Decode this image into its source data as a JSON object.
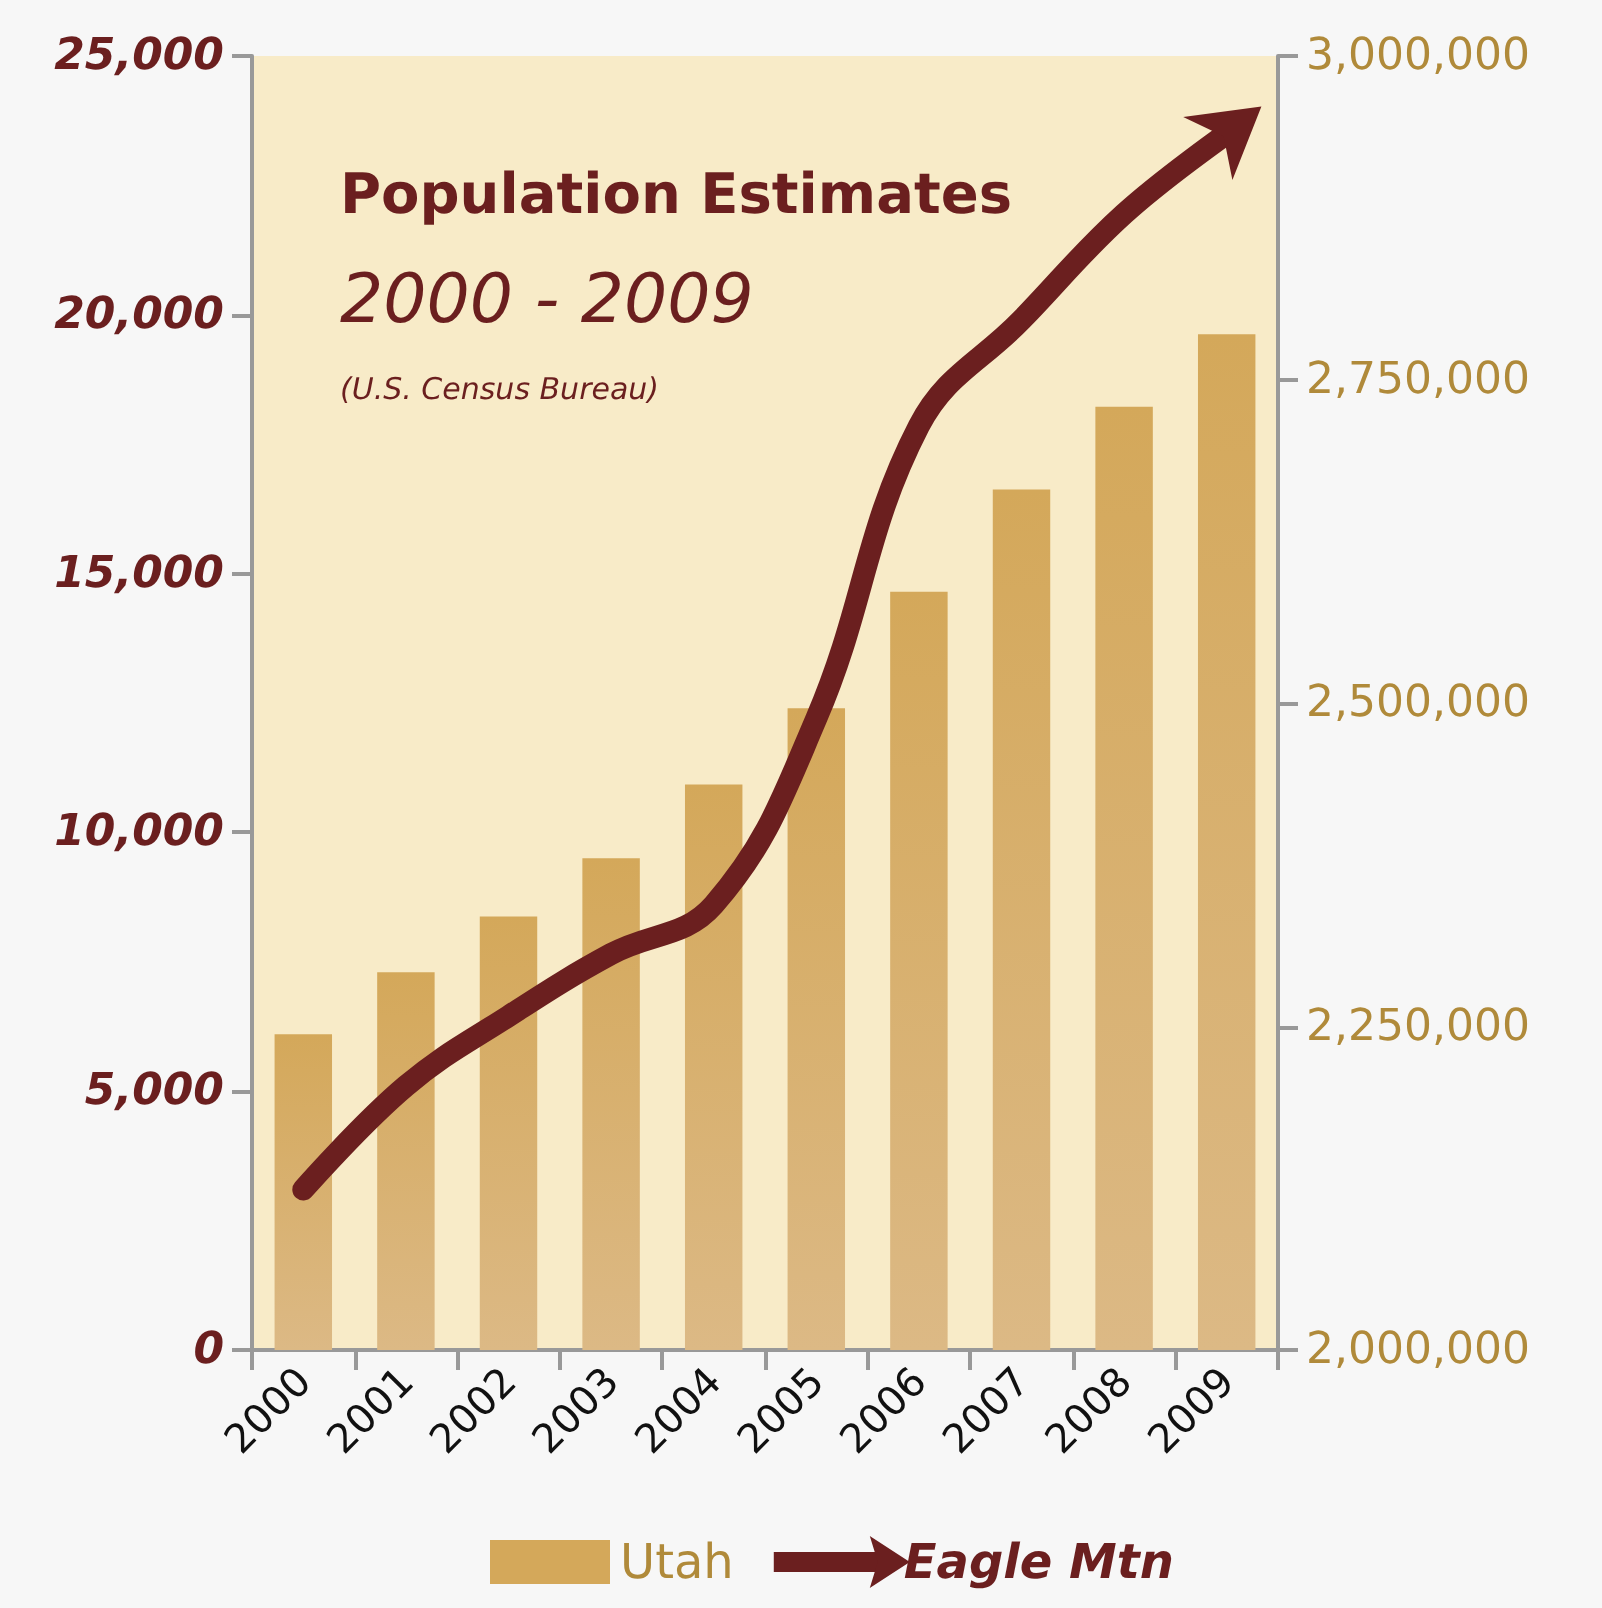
{
  "chart_data": {
    "type": "bar",
    "title": "Population Estimates",
    "subtitle": "2000 - 2009",
    "annotations": [
      "(U.S. Census Bureau)"
    ],
    "categories": [
      "2000",
      "2001",
      "2002",
      "2003",
      "2004",
      "2005",
      "2006",
      "2007",
      "2008",
      "2009"
    ],
    "series": [
      {
        "name": "Utah",
        "axis": "y2",
        "color": "#d4a85a",
        "values": [
          2244000,
          2292000,
          2335000,
          2380000,
          2437000,
          2496000,
          2586000,
          2665000,
          2729000,
          2785000
        ]
      },
      {
        "name": "Eagle Mtn",
        "type": "line",
        "axis": "y",
        "color": "#6b1f1f",
        "values": [
          3100,
          5100,
          6450,
          7650,
          8600,
          12200,
          17850,
          19900,
          21950,
          23500
        ]
      }
    ],
    "ylim": [
      0,
      25000
    ],
    "yticks": [
      0,
      {
        "value": 5000,
        "label": "5,000"
      },
      {
        "value": 10000,
        "label": "10,000"
      },
      {
        "value": 15000,
        "label": "15,000"
      },
      {
        "value": 20000,
        "label": "20,000"
      },
      {
        "value": 25000,
        "label": "25,000"
      }
    ],
    "y2lim": [
      2000000,
      3000000
    ],
    "y2ticks": [
      {
        "value": 2000000,
        "label": "2,000,000"
      },
      {
        "value": 2250000,
        "label": "2,250,000"
      },
      {
        "value": 2500000,
        "label": "2,500,000"
      },
      {
        "value": 2750000,
        "label": "2,750,000"
      },
      {
        "value": 3000000,
        "label": "3,000,000"
      }
    ],
    "legend": "bottom",
    "marker": "none"
  }
}
